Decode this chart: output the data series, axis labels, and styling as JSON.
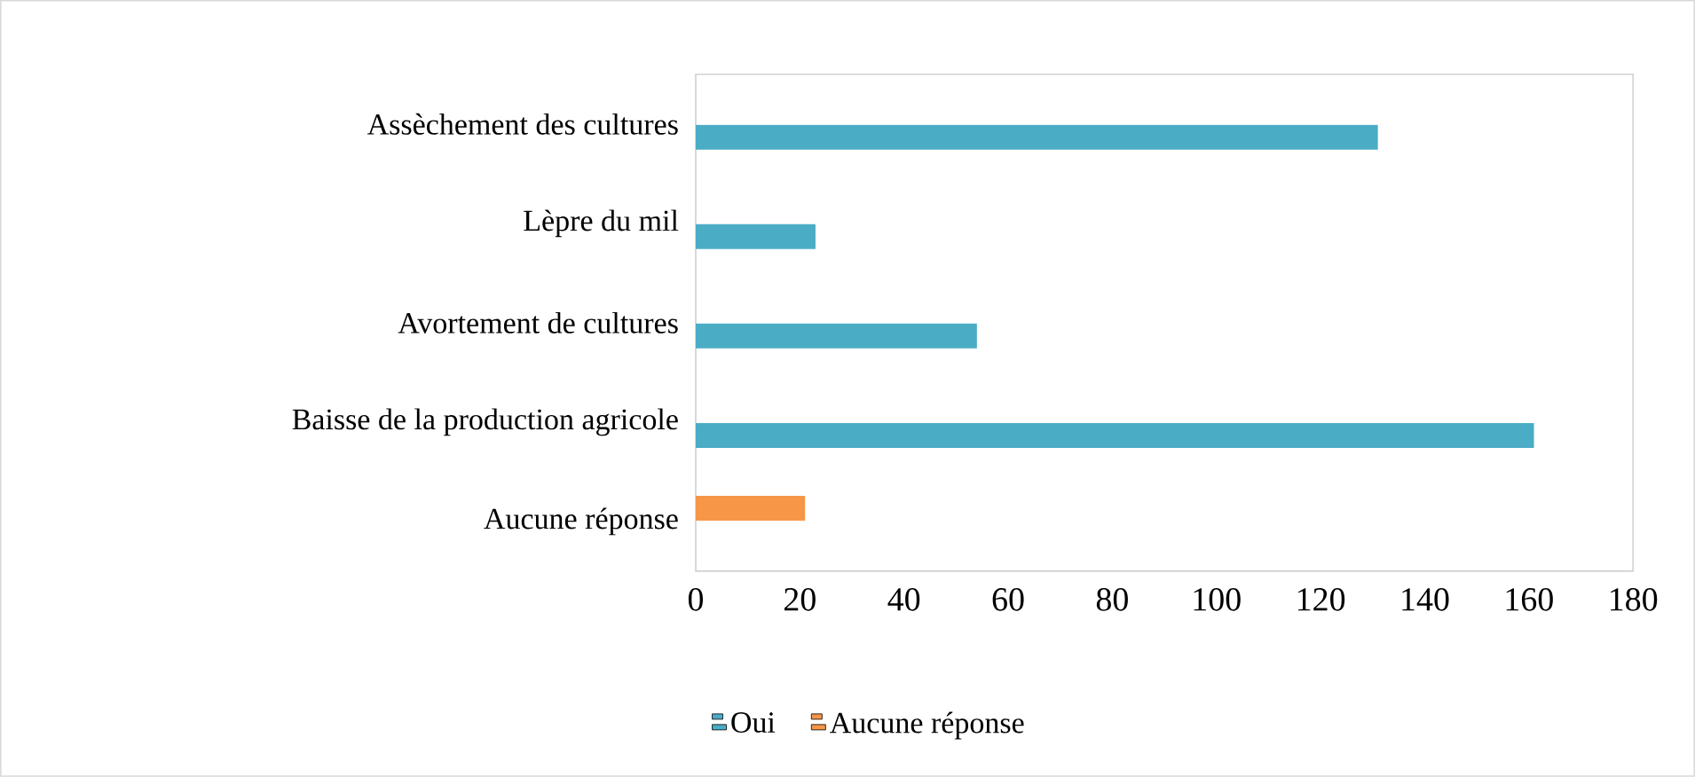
{
  "chart_data": {
    "type": "bar",
    "orientation": "horizontal",
    "categories": [
      "Assèchement des cultures",
      "Lèpre du mil",
      "Avortement de cultures",
      "Baisse de la production agricole",
      "Aucune réponse"
    ],
    "series": [
      {
        "name": "Oui",
        "color": "#4bacc6",
        "values": [
          131,
          23,
          54,
          161,
          null
        ]
      },
      {
        "name": "Aucune réponse",
        "color": "#f79646",
        "values": [
          null,
          null,
          null,
          null,
          21
        ]
      }
    ],
    "xlim": [
      0,
      180
    ],
    "xticks": [
      0,
      20,
      40,
      60,
      80,
      100,
      120,
      140,
      160,
      180
    ],
    "grid": false,
    "legend": "bottom"
  }
}
